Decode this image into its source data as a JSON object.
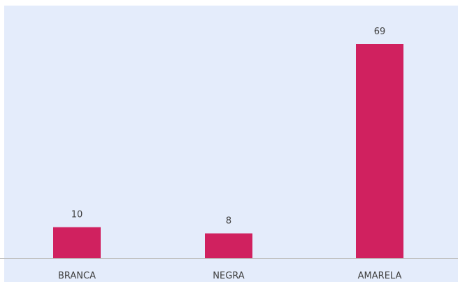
{
  "chart_data": {
    "type": "bar",
    "title": "",
    "xlabel": "",
    "ylabel": "",
    "categories": [
      "BRANCA",
      "NEGRA",
      "AMARELA"
    ],
    "values": [
      10,
      8,
      69
    ],
    "ylim": [
      0,
      80
    ],
    "grid": false,
    "colors": {
      "bar": "#d0215f",
      "background": "#e4ecfb",
      "axis": "#bfbfbf"
    }
  }
}
